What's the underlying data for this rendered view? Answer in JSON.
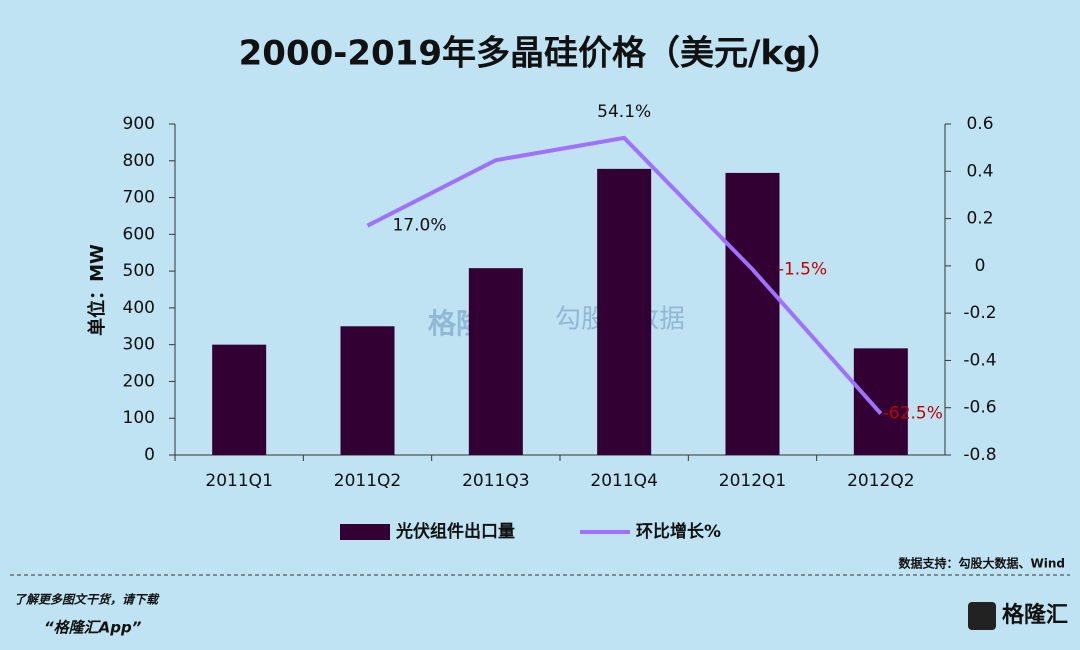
{
  "chart_data": {
    "type": "bar_line",
    "title": "2000-2019年多晶硅价格（美元/kg）",
    "y_label": "单位：MW",
    "categories": [
      "2011Q1",
      "2011Q2",
      "2011Q3",
      "2011Q4",
      "2012Q1",
      "2012Q2"
    ],
    "series": [
      {
        "name": "光伏组件出口量",
        "type": "bar",
        "color": "#330033",
        "values": [
          300,
          350,
          508,
          778,
          767,
          290
        ]
      },
      {
        "name": "环比增长%",
        "type": "line",
        "axis": "y2",
        "color": "#a070ff",
        "values": [
          null,
          0.17,
          0.447,
          0.541,
          -0.015,
          -0.625
        ],
        "value_labels": [
          null,
          "17.0%",
          null,
          "54.1%",
          "-1.5%",
          "-62.5%"
        ]
      }
    ],
    "ylim": [
      0,
      900
    ],
    "yticks": [
      0,
      100,
      200,
      300,
      400,
      500,
      600,
      700,
      800,
      900
    ],
    "y2lim": [
      -0.8,
      0.6
    ],
    "y2ticks": [
      -0.8,
      -0.6,
      -0.4,
      -0.2,
      0,
      0.2,
      0.4,
      0.6
    ],
    "legend": "bottom",
    "source": "数据支持：勾股大数据、Wind"
  },
  "watermark": {
    "brand": "格隆汇",
    "brand2": "勾股大数据"
  },
  "footer": {
    "line1": "了解更多图文干货，请下载",
    "line2": "“格隆汇App”",
    "logo": "格隆汇"
  }
}
